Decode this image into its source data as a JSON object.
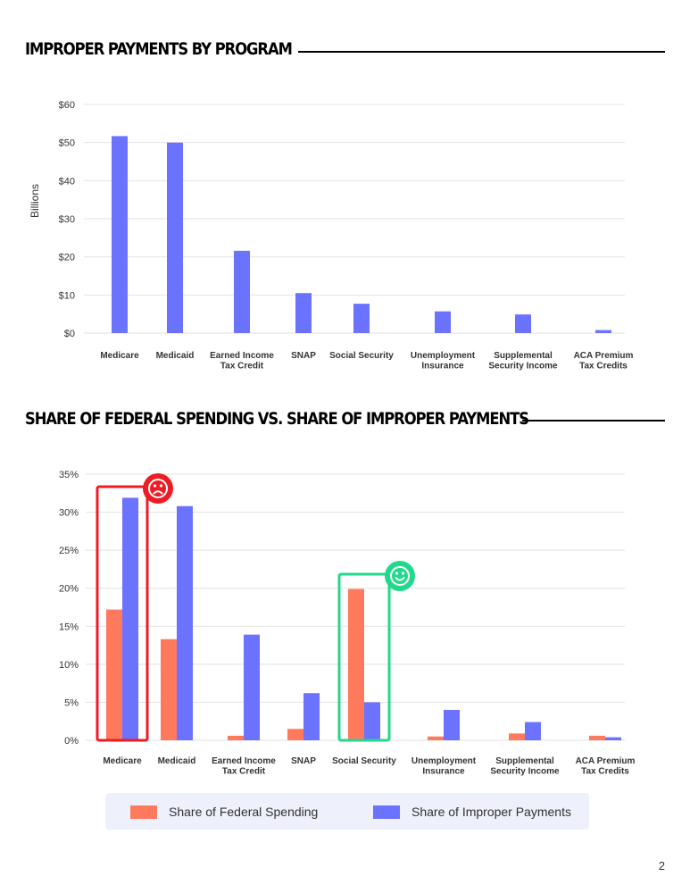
{
  "page": {
    "number": "2"
  },
  "section1": {
    "title": "IMPROPER PAYMENTS BY PROGRAM"
  },
  "section2": {
    "title": "SHARE OF FEDERAL SPENDING VS. SHARE OF IMPROPER PAYMENTS"
  },
  "colors": {
    "federal": "#ff7a5c",
    "improper": "#6b72fe",
    "negative": "#ee1c24",
    "positive": "#22d98b",
    "grid": "#e2e2e2"
  },
  "icons": {
    "negative": "sad-face-icon",
    "positive": "smiley-face-icon"
  },
  "chart_data": [
    {
      "type": "bar",
      "title": "IMPROPER PAYMENTS BY PROGRAM",
      "ylabel": "Billions",
      "xlabel": "",
      "ylim": [
        0,
        60
      ],
      "yticks": [
        "$0",
        "$10",
        "$20",
        "$30",
        "$40",
        "$50",
        "$60"
      ],
      "grid": true,
      "categories": [
        [
          "Medicare"
        ],
        [
          "Medicaid"
        ],
        [
          "Earned Income",
          "Tax Credit"
        ],
        [
          "SNAP"
        ],
        [
          "Social Security"
        ],
        [
          "Unemployment",
          "Insurance"
        ],
        [
          "Supplemental",
          "Security Income"
        ],
        [
          "ACA Premium",
          "Tax Credits"
        ]
      ],
      "series": [
        {
          "values": [
            51.7,
            50.0,
            21.6,
            10.5,
            7.7,
            5.7,
            4.9,
            0.8
          ]
        }
      ]
    },
    {
      "type": "bar",
      "title": "SHARE OF FEDERAL SPENDING VS. SHARE OF IMPROPER PAYMENTS",
      "ylim": [
        0,
        35
      ],
      "yticks": [
        "0%",
        "5%",
        "10%",
        "15%",
        "20%",
        "25%",
        "30%",
        "35%"
      ],
      "grid": true,
      "legend": "bottom",
      "categories": [
        [
          "Medicare"
        ],
        [
          "Medicaid"
        ],
        [
          "Earned Income",
          "Tax Credit"
        ],
        [
          "SNAP"
        ],
        [
          "Social Security"
        ],
        [
          "Unemployment",
          "Insurance"
        ],
        [
          "Supplemental",
          "Security Income"
        ],
        [
          "ACA Premium",
          "Tax Credits"
        ]
      ],
      "series": [
        {
          "name": "Share of Federal Spending",
          "values": [
            17.2,
            13.3,
            0.6,
            1.5,
            19.9,
            0.5,
            0.9,
            0.6
          ]
        },
        {
          "name": "Share of Improper Payments",
          "values": [
            31.9,
            30.8,
            13.9,
            6.2,
            5.0,
            4.0,
            2.4,
            0.4
          ]
        }
      ],
      "highlights": [
        {
          "category": "Medicare",
          "tone": "negative"
        },
        {
          "category": "Social Security",
          "tone": "positive"
        }
      ]
    }
  ]
}
